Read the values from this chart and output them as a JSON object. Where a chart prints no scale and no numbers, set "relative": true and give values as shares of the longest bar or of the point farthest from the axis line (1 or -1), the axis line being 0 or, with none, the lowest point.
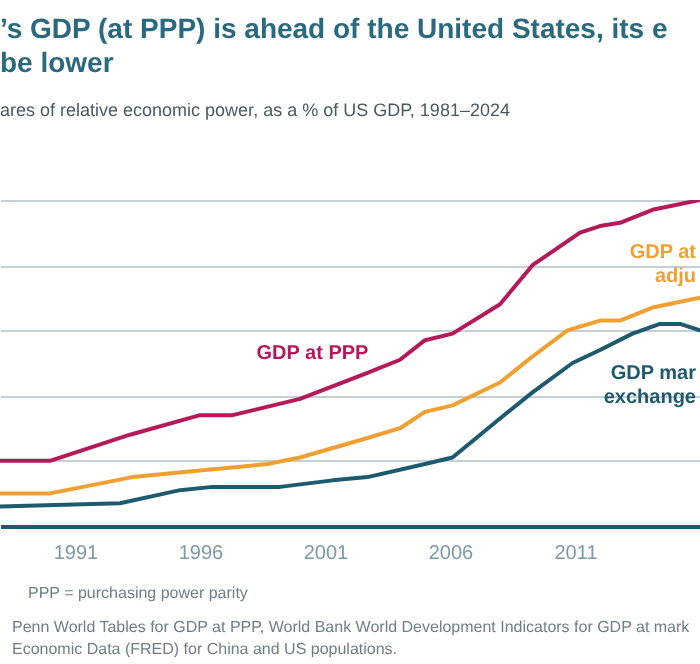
{
  "chart_data": {
    "type": "line",
    "title": "’s GDP (at PPP) is ahead of the United States, its e\nbe lower",
    "subtitle": "ares of relative economic power, as a % of US GDP, 1981–2024",
    "relative": true,
    "grid": "y",
    "xlim": [
      1988,
      2016
    ],
    "xticks": [
      1991,
      1996,
      2001,
      2006,
      2011
    ],
    "series": [
      {
        "name": "GDP at PPP",
        "color": "#b5195a",
        "x": [
          1988,
          1990,
          1993.2,
          1996,
          1997.3,
          2000,
          2002.7,
          2004,
          2005,
          2006.1,
          2008,
          2009.3,
          2011.2,
          2012,
          2012.8,
          2014.1,
          2016
        ],
        "values": [
          0.2,
          0.2,
          0.28,
          0.34,
          0.34,
          0.39,
          0.47,
          0.51,
          0.57,
          0.59,
          0.68,
          0.8,
          0.9,
          0.92,
          0.93,
          0.97,
          1
        ]
      },
      {
        "name": "GDP at\nadju",
        "color": "#f0a030",
        "x": [
          1988,
          1990,
          1993.3,
          1996,
          1998.7,
          2000,
          2002.7,
          2004,
          2005,
          2006.1,
          2008,
          2009.3,
          2010.7,
          2012,
          2012.8,
          2014.1,
          2016
        ],
        "values": [
          0.1,
          0.1,
          0.15,
          0.17,
          0.19,
          0.21,
          0.27,
          0.3,
          0.35,
          0.37,
          0.44,
          0.52,
          0.6,
          0.63,
          0.63,
          0.67,
          0.7
        ]
      },
      {
        "name": "GDP mar\nexchange",
        "color": "#1e5a6e",
        "x": [
          1988,
          1992.8,
          1995.2,
          1996.5,
          1999.2,
          2001.3,
          2002.7,
          2005,
          2006.1,
          2008,
          2009.3,
          2010.9,
          2012,
          2013.3,
          2014.4,
          2015.2,
          2016
        ],
        "values": [
          0.06,
          0.07,
          0.11,
          0.12,
          0.12,
          0.14,
          0.15,
          0.19,
          0.21,
          0.33,
          0.41,
          0.5,
          0.54,
          0.59,
          0.62,
          0.62,
          0.6
        ]
      }
    ],
    "annotations": [
      "PPP = purchasing power parity",
      "Penn World Tables for GDP at PPP, World Bank World Development Indicators for GDP at mark\nEconomic Data (FRED) for China and US populations."
    ]
  }
}
